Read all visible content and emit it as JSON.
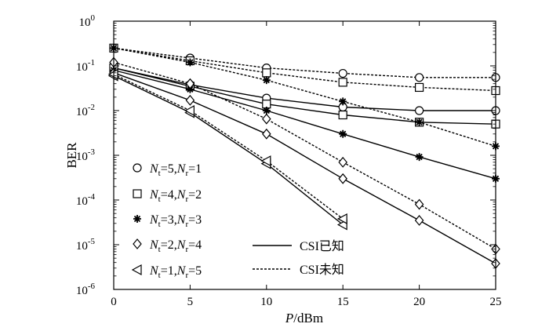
{
  "chart_data": {
    "type": "line",
    "xlabel_italic": "P",
    "xlabel_rest": "/dBm",
    "ylabel": "BER",
    "x_ticks": [
      "0",
      "5",
      "10",
      "15",
      "20",
      "25"
    ],
    "y_ticks": [
      {
        "base": "10",
        "exp": "0"
      },
      {
        "base": "10",
        "exp": "-1"
      },
      {
        "base": "10",
        "exp": "-2"
      },
      {
        "base": "10",
        "exp": "-3"
      },
      {
        "base": "10",
        "exp": "-4"
      },
      {
        "base": "10",
        "exp": "-5"
      },
      {
        "base": "10",
        "exp": "-6"
      }
    ],
    "xlim": [
      0,
      25
    ],
    "ylim_log10": [
      -6,
      0
    ],
    "line_styles": [
      {
        "name": "csi-known",
        "label": "CSI已知",
        "dash": "solid"
      },
      {
        "name": "csi-unknown",
        "label": "CSI未知",
        "dash": "dotted"
      }
    ],
    "configs": [
      {
        "name": "nt5-nr1",
        "nt": "5",
        "nr": "1",
        "marker": "circle"
      },
      {
        "name": "nt4-nr2",
        "nt": "4",
        "nr": "2",
        "marker": "square"
      },
      {
        "name": "nt3-nr3",
        "nt": "3",
        "nr": "3",
        "marker": "star"
      },
      {
        "name": "nt2-nr4",
        "nt": "2",
        "nr": "4",
        "marker": "diamond"
      },
      {
        "name": "nt1-nr5",
        "nt": "1",
        "nr": "5",
        "marker": "triangle-left"
      }
    ],
    "series": [
      {
        "name": "Nt=5,Nr=1 CSI已知",
        "marker": "circle",
        "dash": "solid",
        "x": [
          0,
          5,
          10,
          15,
          20,
          25
        ],
        "y": [
          0.09,
          0.038,
          0.019,
          0.012,
          0.01,
          0.01
        ]
      },
      {
        "name": "Nt=5,Nr=1 CSI未知",
        "marker": "circle",
        "dash": "dotted",
        "x": [
          0,
          5,
          10,
          15,
          20,
          25
        ],
        "y": [
          0.25,
          0.15,
          0.09,
          0.068,
          0.055,
          0.055
        ]
      },
      {
        "name": "Nt=4,Nr=2 CSI已知",
        "marker": "square",
        "dash": "solid",
        "x": [
          0,
          5,
          10,
          15,
          20,
          25
        ],
        "y": [
          0.09,
          0.035,
          0.014,
          0.008,
          0.0055,
          0.005
        ]
      },
      {
        "name": "Nt=4,Nr=2 CSI未知",
        "marker": "square",
        "dash": "dotted",
        "x": [
          0,
          5,
          10,
          15,
          20,
          25
        ],
        "y": [
          0.25,
          0.13,
          0.07,
          0.043,
          0.033,
          0.028
        ]
      },
      {
        "name": "Nt=3,Nr=3 CSI已知",
        "marker": "star",
        "dash": "solid",
        "x": [
          0,
          5,
          10,
          15,
          20,
          25
        ],
        "y": [
          0.08,
          0.03,
          0.01,
          0.003,
          0.00092,
          0.0003
        ]
      },
      {
        "name": "Nt=3,Nr=3 CSI未知",
        "marker": "star",
        "dash": "dotted",
        "x": [
          0,
          5,
          10,
          15,
          20,
          25
        ],
        "y": [
          0.25,
          0.12,
          0.048,
          0.016,
          0.0055,
          0.0016
        ]
      },
      {
        "name": "Nt=2,Nr=4 CSI已知",
        "marker": "diamond",
        "dash": "solid",
        "x": [
          0,
          5,
          10,
          15,
          20,
          25
        ],
        "y": [
          0.07,
          0.017,
          0.003,
          0.0003,
          3.5e-05,
          3.8e-06
        ]
      },
      {
        "name": "Nt=2,Nr=4 CSI未知",
        "marker": "diamond",
        "dash": "dotted",
        "x": [
          0,
          5,
          10,
          15,
          20,
          25
        ],
        "y": [
          0.12,
          0.04,
          0.0065,
          0.0007,
          8e-05,
          8e-06
        ]
      },
      {
        "name": "Nt=1,Nr=5 CSI已知",
        "marker": "triangle-left",
        "dash": "solid",
        "x": [
          0,
          5,
          10,
          15
        ],
        "y": [
          0.06,
          0.009,
          0.00065,
          2.8e-05
        ]
      },
      {
        "name": "Nt=1,Nr=5 CSI未知",
        "marker": "triangle-left",
        "dash": "dotted",
        "x": [
          0,
          5,
          10,
          15
        ],
        "y": [
          0.065,
          0.01,
          0.00075,
          3.8e-05
        ]
      }
    ]
  }
}
